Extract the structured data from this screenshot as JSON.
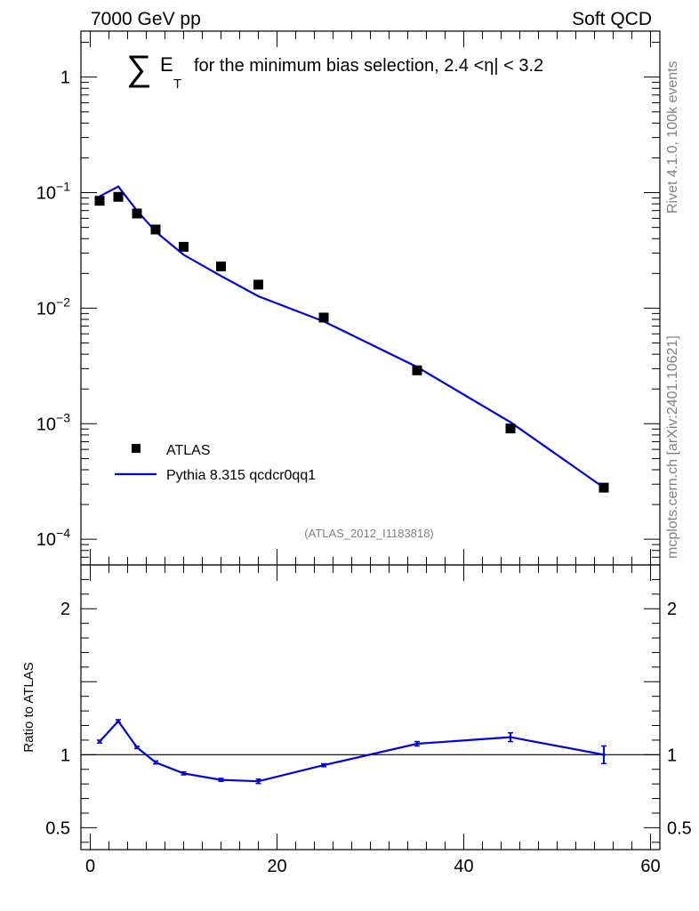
{
  "header": {
    "left": "7000 GeV pp",
    "right": "Soft QCD"
  },
  "title": {
    "sum_symbol": "∑",
    "e_letter": "E",
    "sub_t": "T",
    "rest": "for the minimum bias selection, 2.4 <η| < 3.2"
  },
  "side_labels": {
    "rivet": "Rivet 4.1.0,  100k events",
    "mcplots": "mcplots.cern.ch [arXiv:2401.10621]"
  },
  "analysis_id": "(ATLAS_2012_I1183818)",
  "legend": {
    "data_label": "ATLAS",
    "mc_label": "Pythia 8.315 qcdcr0qq1"
  },
  "colors": {
    "data": "#000000",
    "mc": "#0000e0",
    "watermark": "#808080"
  },
  "chart_data": [
    {
      "type": "scatter",
      "panel": "main",
      "yscale": "log",
      "xlim": [
        -1,
        61
      ],
      "ylim": [
        6e-05,
        2.5
      ],
      "yticks": [
        {
          "value": 1,
          "base": "1",
          "exp": ""
        },
        {
          "value": 0.1,
          "base": "10",
          "exp": "−1"
        },
        {
          "value": 0.01,
          "base": "10",
          "exp": "−2"
        },
        {
          "value": 0.001,
          "base": "10",
          "exp": "−3"
        },
        {
          "value": 0.0001,
          "base": "10",
          "exp": "−4"
        }
      ],
      "series": [
        {
          "name": "ATLAS",
          "style": "markers",
          "x": [
            1,
            3,
            5,
            7,
            10,
            14,
            18,
            25,
            35,
            45,
            55
          ],
          "y": [
            0.085,
            0.092,
            0.066,
            0.048,
            0.034,
            0.023,
            0.016,
            0.0083,
            0.0029,
            0.00091,
            0.00028
          ]
        },
        {
          "name": "Pythia 8.315 qcdcr0qq1",
          "style": "line",
          "x": [
            1,
            3,
            5,
            7,
            10,
            14,
            18,
            25,
            35,
            45,
            55
          ],
          "y": [
            0.093,
            0.113,
            0.07,
            0.046,
            0.029,
            0.019,
            0.0127,
            0.0077,
            0.0031,
            0.00103,
            0.00028
          ]
        }
      ]
    },
    {
      "type": "line",
      "panel": "ratio",
      "ylabel": "Ratio to ATLAS",
      "xlim": [
        -1,
        61
      ],
      "ylim": [
        0.35,
        2.3
      ],
      "yticks": [
        0.5,
        1,
        2
      ],
      "ytick_labels": [
        "0.5",
        "1",
        "2"
      ],
      "xticks": [
        0,
        20,
        40,
        60
      ],
      "xtick_labels": [
        "0",
        "20",
        "40",
        "60"
      ],
      "reference_line": 1,
      "series": [
        {
          "name": "Pythia 8.315 qcdcr0qq1 / ATLAS",
          "x": [
            1,
            3,
            5,
            7,
            10,
            14,
            18,
            25,
            35,
            45,
            55
          ],
          "y": [
            1.09,
            1.23,
            1.05,
            0.947,
            0.872,
            0.828,
            0.818,
            0.928,
            1.075,
            1.12,
            1.0
          ],
          "err": [
            0.01,
            0.01,
            0.008,
            0.01,
            0.01,
            0.01,
            0.015,
            0.01,
            0.015,
            0.03,
            0.06
          ]
        }
      ]
    }
  ]
}
